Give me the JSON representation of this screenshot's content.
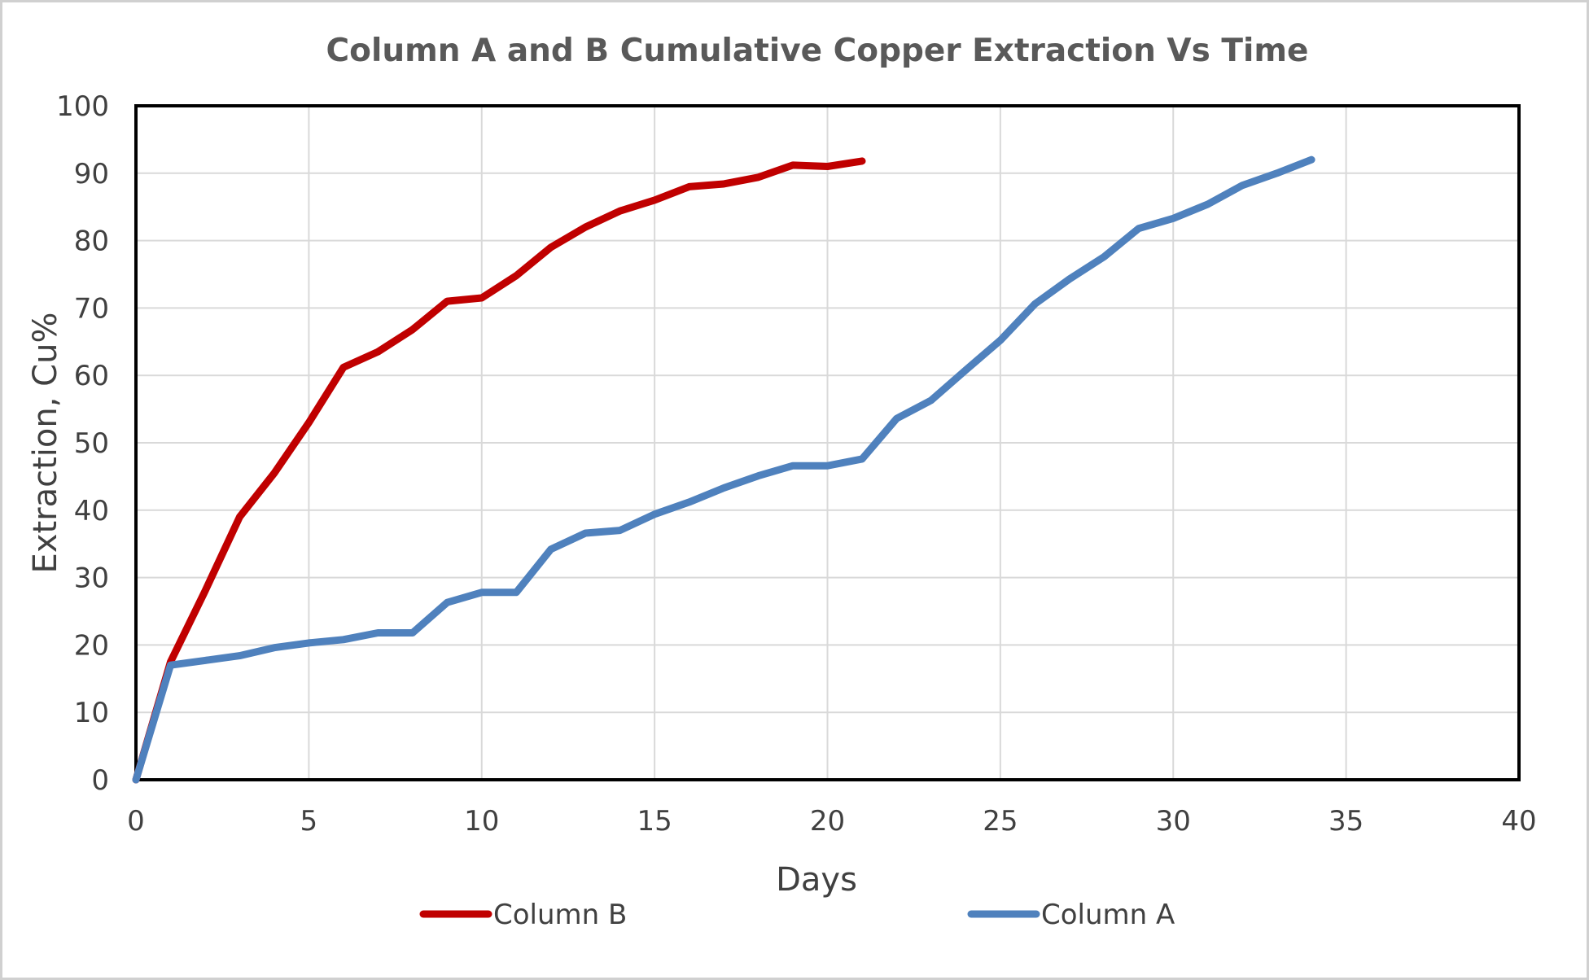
{
  "chart_data": {
    "type": "line",
    "title": "Column A and B Cumulative Copper Extraction Vs Time",
    "xlabel": "Days",
    "ylabel": "Extraction, Cu%",
    "xlim": [
      0,
      40
    ],
    "ylim": [
      0,
      100
    ],
    "xticks": [
      "0",
      "5",
      "10",
      "15",
      "20",
      "25",
      "30",
      "35",
      "40"
    ],
    "yticks": [
      "0",
      "10",
      "20",
      "30",
      "40",
      "50",
      "60",
      "70",
      "80",
      "90",
      "100"
    ],
    "grid": true,
    "legend_position": "bottom",
    "series": [
      {
        "name": "Column B",
        "color": "#c00000",
        "x": [
          0,
          1,
          2,
          3,
          4,
          5,
          6,
          7,
          8,
          9,
          10,
          11,
          12,
          13,
          14,
          15,
          16,
          17,
          18,
          19,
          20,
          21
        ],
        "y": [
          0,
          17.5,
          28,
          39,
          45.5,
          53,
          61.2,
          63.5,
          66.8,
          71,
          71.5,
          74.8,
          79,
          82,
          84.4,
          86,
          88,
          88.4,
          89.4,
          91.2,
          91,
          91.8
        ]
      },
      {
        "name": "Column A",
        "color": "#4f81bd",
        "x": [
          0,
          1,
          2,
          3,
          4,
          5,
          6,
          7,
          8,
          9,
          10,
          11,
          12,
          13,
          14,
          15,
          16,
          17,
          18,
          19,
          20,
          21,
          22,
          23,
          24,
          25,
          26,
          27,
          28,
          29,
          30,
          31,
          32,
          33,
          34
        ],
        "y": [
          0,
          17,
          17.7,
          18.4,
          19.6,
          20.3,
          20.8,
          21.8,
          21.8,
          26.3,
          27.8,
          27.8,
          34.2,
          36.6,
          37,
          39.4,
          41.2,
          43.3,
          45.1,
          46.6,
          46.6,
          47.6,
          53.6,
          56.3,
          60.8,
          65.2,
          70.6,
          74.3,
          77.6,
          81.8,
          83.3,
          85.4,
          88.2,
          90,
          92
        ]
      }
    ]
  }
}
